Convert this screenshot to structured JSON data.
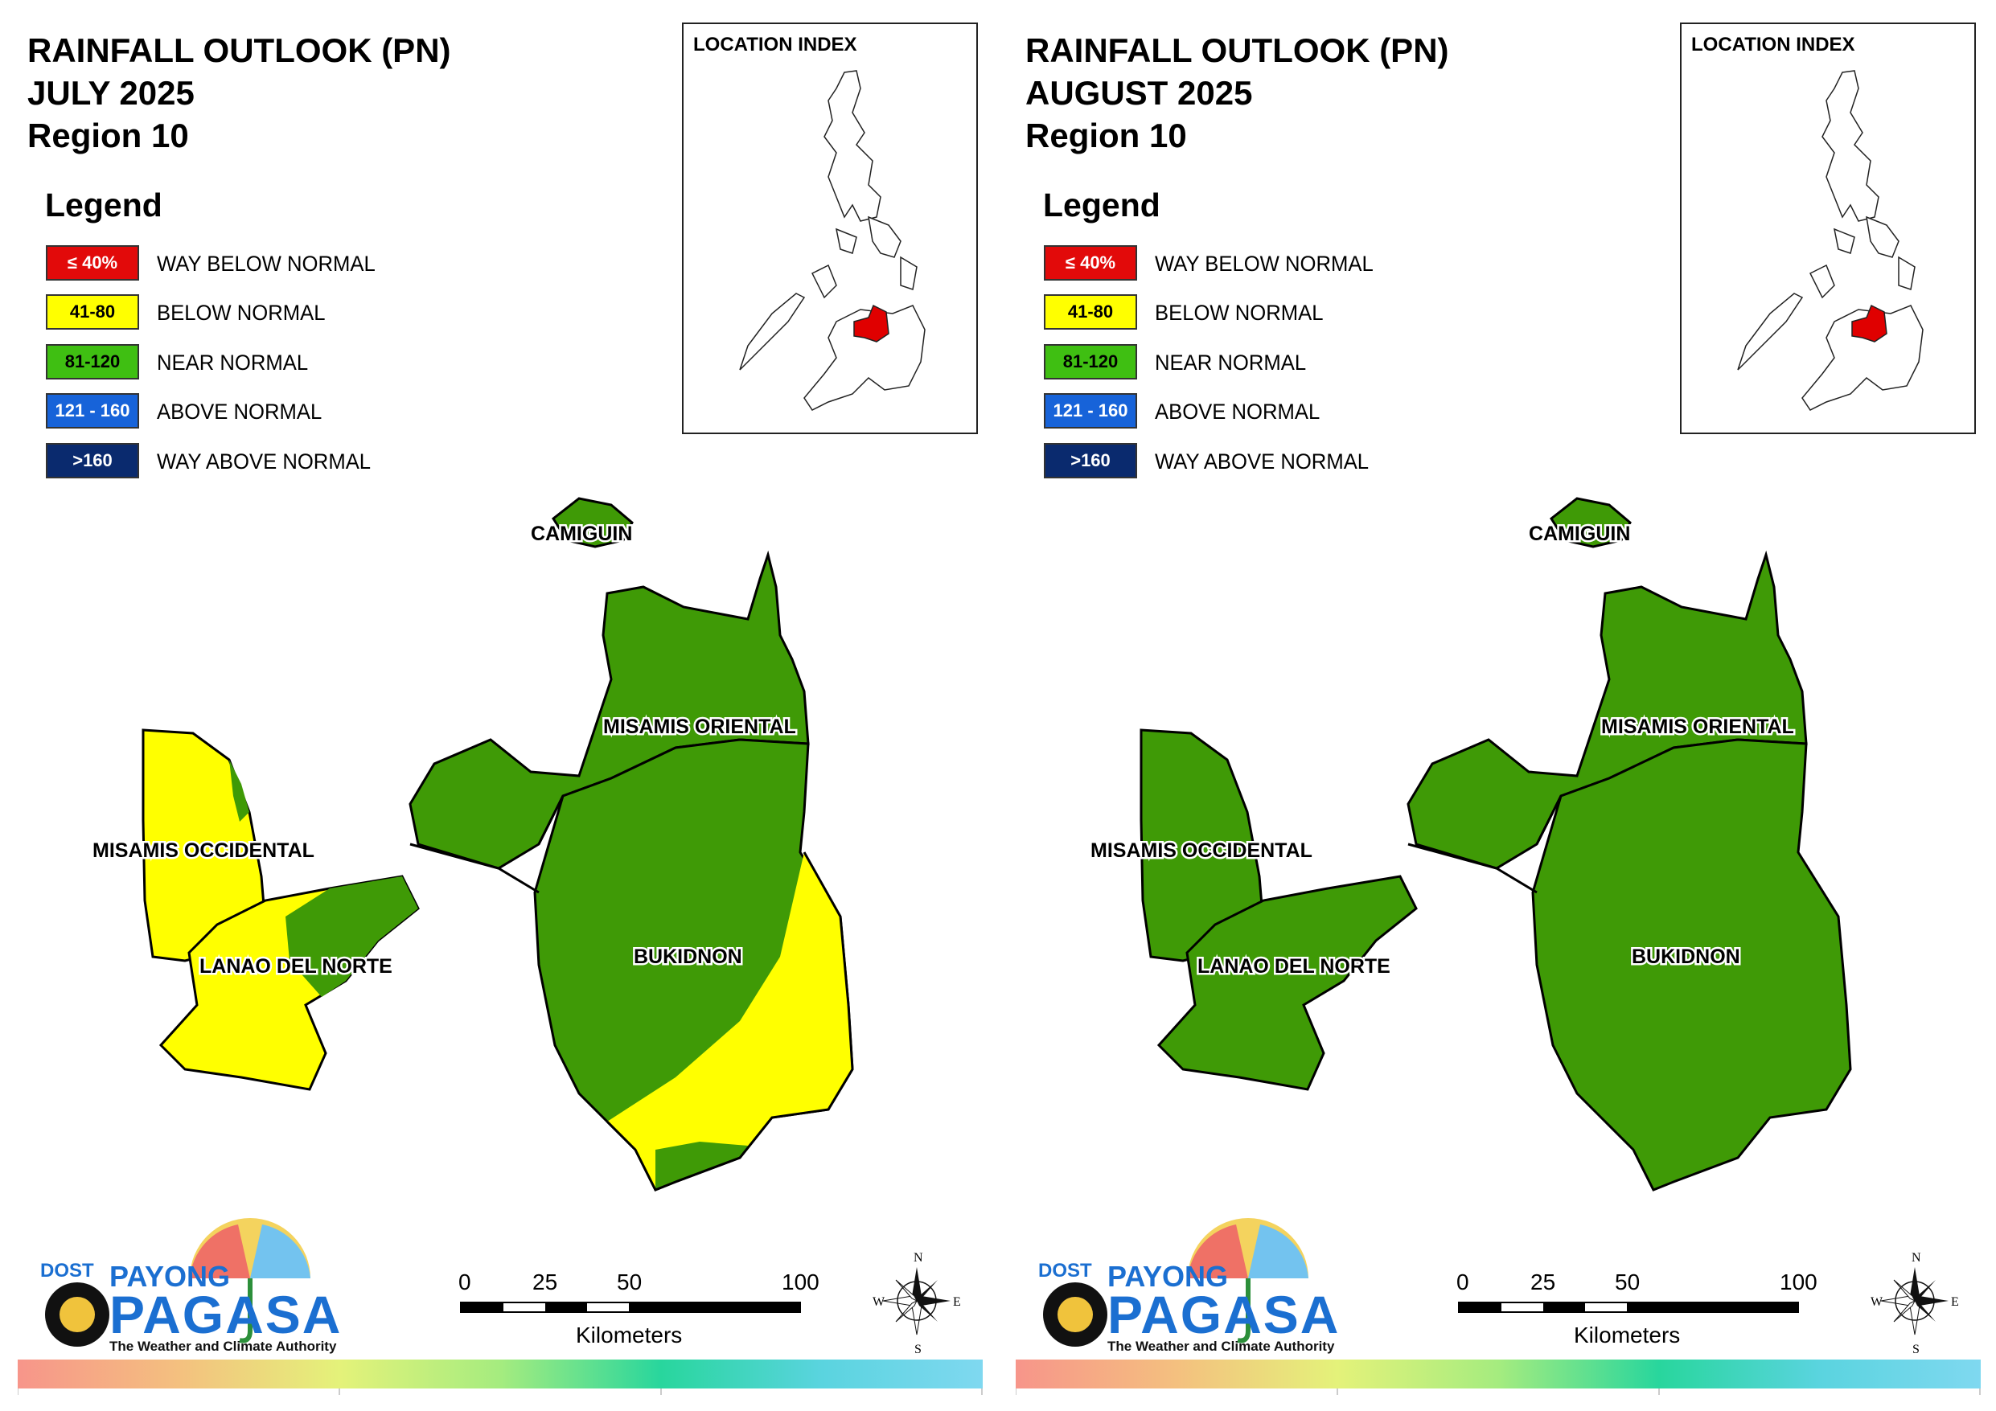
{
  "panels": [
    {
      "title_line1": "RAINFALL OUTLOOK (PN)",
      "title_line2": "JULY 2025",
      "title_line3": "Region 10"
    },
    {
      "title_line1": "RAINFALL OUTLOOK (PN)",
      "title_line2": "AUGUST 2025",
      "title_line3": "Region 10"
    }
  ],
  "legend": {
    "title": "Legend",
    "items": [
      {
        "range": "≤ 40%",
        "label": "WAY BELOW NORMAL",
        "color": "#e20a0a",
        "text_color": "#ffffff"
      },
      {
        "range": "41-80",
        "label": "BELOW NORMAL",
        "color": "#ffff00",
        "text_color": "#000000"
      },
      {
        "range": "81-120",
        "label": "NEAR NORMAL",
        "color": "#3fbf12",
        "text_color": "#000000"
      },
      {
        "range": "121 - 160",
        "label": "ABOVE NORMAL",
        "color": "#1763d9",
        "text_color": "#ffffff"
      },
      {
        "range": ">160",
        "label": "WAY ABOVE NORMAL",
        "color": "#0a2a6e",
        "text_color": "#ffffff"
      }
    ]
  },
  "inset": {
    "title": "LOCATION INDEX"
  },
  "provinces": {
    "camiguin": "CAMIGUIN",
    "misamis_oriental": "MISAMIS ORIENTAL",
    "misamis_occidental": "MISAMIS OCCIDENTAL",
    "lanao_del_norte": "LANAO DEL NORTE",
    "bukidnon": "BUKIDNON"
  },
  "colors": {
    "near_normal": "#3f9a06",
    "below_normal": "#ffff00",
    "highlight": "#e00000"
  },
  "scale": {
    "ticks": [
      "0",
      "25",
      "50",
      "100"
    ],
    "unit": "Kilometers"
  },
  "compass": {
    "n": "N",
    "s": "S",
    "e": "E",
    "w": "W"
  },
  "logo": {
    "dost": "DOST",
    "payong": "PAYONG",
    "pagasa": "PAGASA",
    "tagline": "The Weather and Climate Authority"
  }
}
